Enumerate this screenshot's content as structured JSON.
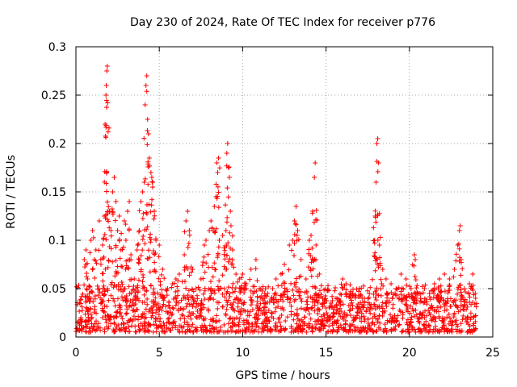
{
  "chart_data": {
    "type": "scatter",
    "title": "Day 230 of 2024, Rate Of TEC Index for receiver p776",
    "xlabel": "GPS time / hours",
    "ylabel": "ROTI / TECUs",
    "xlim": [
      0,
      25
    ],
    "ylim": [
      0,
      0.3
    ],
    "x_ticks": [
      "0",
      "5",
      "10",
      "15",
      "20",
      "25"
    ],
    "y_ticks": [
      "0",
      "0.05",
      "0.1",
      "0.15",
      "0.2",
      "0.25",
      "0.3"
    ],
    "grid": true,
    "marker": "plus",
    "series_color": "#ff0000",
    "background_band": {
      "x_range": [
        0,
        24
      ],
      "baseline_range": [
        0.005,
        0.04
      ]
    },
    "series": [
      {
        "name": "ROTI",
        "points": [
          [
            0.1,
            0.015
          ],
          [
            0.3,
            0.02
          ],
          [
            0.5,
            0.08
          ],
          [
            0.6,
            0.09
          ],
          [
            0.7,
            0.06
          ],
          [
            0.8,
            0.04
          ],
          [
            0.9,
            0.1
          ],
          [
            1.0,
            0.11
          ],
          [
            1.2,
            0.09
          ],
          [
            1.4,
            0.12
          ],
          [
            1.5,
            0.075
          ],
          [
            1.6,
            0.095
          ],
          [
            1.7,
            0.125
          ],
          [
            1.75,
            0.22
          ],
          [
            1.8,
            0.25
          ],
          [
            1.82,
            0.26
          ],
          [
            1.85,
            0.275
          ],
          [
            1.88,
            0.28
          ],
          [
            1.9,
            0.242
          ],
          [
            1.93,
            0.212
          ],
          [
            2.0,
            0.13
          ],
          [
            2.1,
            0.11
          ],
          [
            2.2,
            0.15
          ],
          [
            2.3,
            0.165
          ],
          [
            2.4,
            0.14
          ],
          [
            2.5,
            0.11
          ],
          [
            2.6,
            0.125
          ],
          [
            2.7,
            0.09
          ],
          [
            2.9,
            0.12
          ],
          [
            3.0,
            0.1
          ],
          [
            3.1,
            0.13
          ],
          [
            3.2,
            0.14
          ],
          [
            3.3,
            0.085
          ],
          [
            3.5,
            0.06
          ],
          [
            3.6,
            0.05
          ],
          [
            3.7,
            0.095
          ],
          [
            3.8,
            0.11
          ],
          [
            3.9,
            0.14
          ],
          [
            4.0,
            0.15
          ],
          [
            4.1,
            0.16
          ],
          [
            4.15,
            0.24
          ],
          [
            4.2,
            0.26
          ],
          [
            4.25,
            0.27
          ],
          [
            4.3,
            0.225
          ],
          [
            4.35,
            0.21
          ],
          [
            4.4,
            0.185
          ],
          [
            4.5,
            0.17
          ],
          [
            4.55,
            0.165
          ],
          [
            4.6,
            0.16
          ],
          [
            4.7,
            0.13
          ],
          [
            4.8,
            0.1
          ],
          [
            5.0,
            0.095
          ],
          [
            5.2,
            0.07
          ],
          [
            5.5,
            0.05
          ],
          [
            5.8,
            0.055
          ],
          [
            6.0,
            0.06
          ],
          [
            6.2,
            0.065
          ],
          [
            6.5,
            0.085
          ],
          [
            6.6,
            0.12
          ],
          [
            6.7,
            0.13
          ],
          [
            6.8,
            0.11
          ],
          [
            7.0,
            0.07
          ],
          [
            7.2,
            0.05
          ],
          [
            7.5,
            0.06
          ],
          [
            7.7,
            0.095
          ],
          [
            7.8,
            0.1
          ],
          [
            8.0,
            0.11
          ],
          [
            8.1,
            0.12
          ],
          [
            8.3,
            0.135
          ],
          [
            8.4,
            0.145
          ],
          [
            8.45,
            0.18
          ],
          [
            8.5,
            0.17
          ],
          [
            8.55,
            0.185
          ],
          [
            8.6,
            0.1
          ],
          [
            8.8,
            0.105
          ],
          [
            9.0,
            0.11
          ],
          [
            9.05,
            0.19
          ],
          [
            9.1,
            0.2
          ],
          [
            9.15,
            0.175
          ],
          [
            9.2,
            0.165
          ],
          [
            9.3,
            0.115
          ],
          [
            9.4,
            0.09
          ],
          [
            9.6,
            0.065
          ],
          [
            9.8,
            0.06
          ],
          [
            10.0,
            0.065
          ],
          [
            10.2,
            0.055
          ],
          [
            10.5,
            0.07
          ],
          [
            10.8,
            0.08
          ],
          [
            11.0,
            0.05
          ],
          [
            11.3,
            0.04
          ],
          [
            11.5,
            0.045
          ],
          [
            11.8,
            0.05
          ],
          [
            12.0,
            0.06
          ],
          [
            12.3,
            0.065
          ],
          [
            12.5,
            0.075
          ],
          [
            12.8,
            0.095
          ],
          [
            13.0,
            0.1
          ],
          [
            13.1,
            0.12
          ],
          [
            13.2,
            0.135
          ],
          [
            13.3,
            0.11
          ],
          [
            13.5,
            0.08
          ],
          [
            13.8,
            0.06
          ],
          [
            14.0,
            0.1
          ],
          [
            14.1,
            0.105
          ],
          [
            14.2,
            0.13
          ],
          [
            14.3,
            0.165
          ],
          [
            14.35,
            0.18
          ],
          [
            14.4,
            0.095
          ],
          [
            14.6,
            0.065
          ],
          [
            14.8,
            0.04
          ],
          [
            15.0,
            0.03
          ],
          [
            15.3,
            0.035
          ],
          [
            15.6,
            0.04
          ],
          [
            16.0,
            0.06
          ],
          [
            16.2,
            0.055
          ],
          [
            16.6,
            0.045
          ],
          [
            17.0,
            0.05
          ],
          [
            17.3,
            0.04
          ],
          [
            17.6,
            0.045
          ],
          [
            17.9,
            0.1
          ],
          [
            17.95,
            0.125
          ],
          [
            18.0,
            0.16
          ],
          [
            18.05,
            0.2
          ],
          [
            18.1,
            0.205
          ],
          [
            18.15,
            0.18
          ],
          [
            18.2,
            0.095
          ],
          [
            18.4,
            0.07
          ],
          [
            18.6,
            0.06
          ],
          [
            18.9,
            0.055
          ],
          [
            19.2,
            0.05
          ],
          [
            19.5,
            0.065
          ],
          [
            19.8,
            0.06
          ],
          [
            20.1,
            0.05
          ],
          [
            20.3,
            0.085
          ],
          [
            20.35,
            0.08
          ],
          [
            20.6,
            0.045
          ],
          [
            20.9,
            0.05
          ],
          [
            21.2,
            0.045
          ],
          [
            21.5,
            0.055
          ],
          [
            21.8,
            0.06
          ],
          [
            22.1,
            0.065
          ],
          [
            22.4,
            0.06
          ],
          [
            22.7,
            0.07
          ],
          [
            22.9,
            0.095
          ],
          [
            23.0,
            0.11
          ],
          [
            23.05,
            0.115
          ],
          [
            23.1,
            0.08
          ],
          [
            23.3,
            0.05
          ],
          [
            23.6,
            0.055
          ],
          [
            23.8,
            0.065
          ],
          [
            23.95,
            0.045
          ]
        ]
      }
    ]
  }
}
